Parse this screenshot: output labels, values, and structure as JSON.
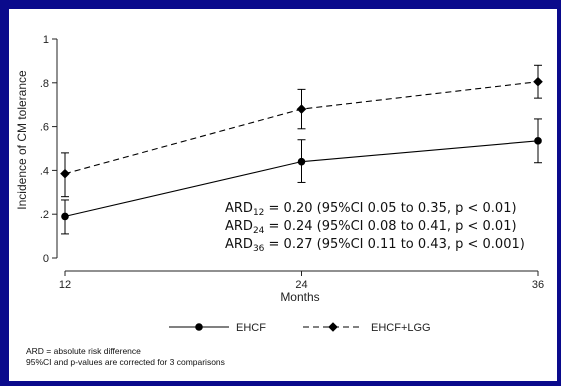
{
  "colors": {
    "background": "#0a0a8c",
    "panel": "#ffffff",
    "ink": "#000000"
  },
  "chart_data": {
    "type": "line",
    "ylabel": "Incidence of CM tolerance",
    "xlabel": "Months",
    "xlim": [
      12,
      36
    ],
    "ylim": [
      0,
      1
    ],
    "x_ticks": [
      "12",
      "24",
      "36"
    ],
    "y_ticks": [
      "0",
      ".2",
      ".4",
      ".6",
      ".8",
      "1"
    ],
    "x": [
      12,
      24,
      36
    ],
    "series": [
      {
        "name": "EHCF",
        "style": "solid",
        "marker": "circle",
        "values": [
          0.19,
          0.44,
          0.535
        ],
        "ci_low": [
          0.11,
          0.345,
          0.435
        ],
        "ci_high": [
          0.265,
          0.54,
          0.635
        ]
      },
      {
        "name": "EHCF+LGG",
        "style": "dashed",
        "marker": "diamond",
        "values": [
          0.385,
          0.68,
          0.805
        ],
        "ci_low": [
          0.28,
          0.59,
          0.73
        ],
        "ci_high": [
          0.48,
          0.77,
          0.88
        ]
      }
    ],
    "annotations": [
      {
        "label": "ARD",
        "sub": "12",
        "text": " = 0.20 (95%CI 0.05 to 0.35, p < 0.01)"
      },
      {
        "label": "ARD",
        "sub": "24",
        "text": " = 0.24 (95%CI 0.08 to 0.41, p < 0.01)"
      },
      {
        "label": "ARD",
        "sub": "36",
        "text": " = 0.27 (95%CI 0.11 to 0.43, p < 0.001)"
      }
    ],
    "legend_position": "bottom",
    "grid": false
  },
  "footnotes": [
    "ARD = absolute risk difference",
    "95%CI and p-values are corrected for 3 comparisons"
  ]
}
